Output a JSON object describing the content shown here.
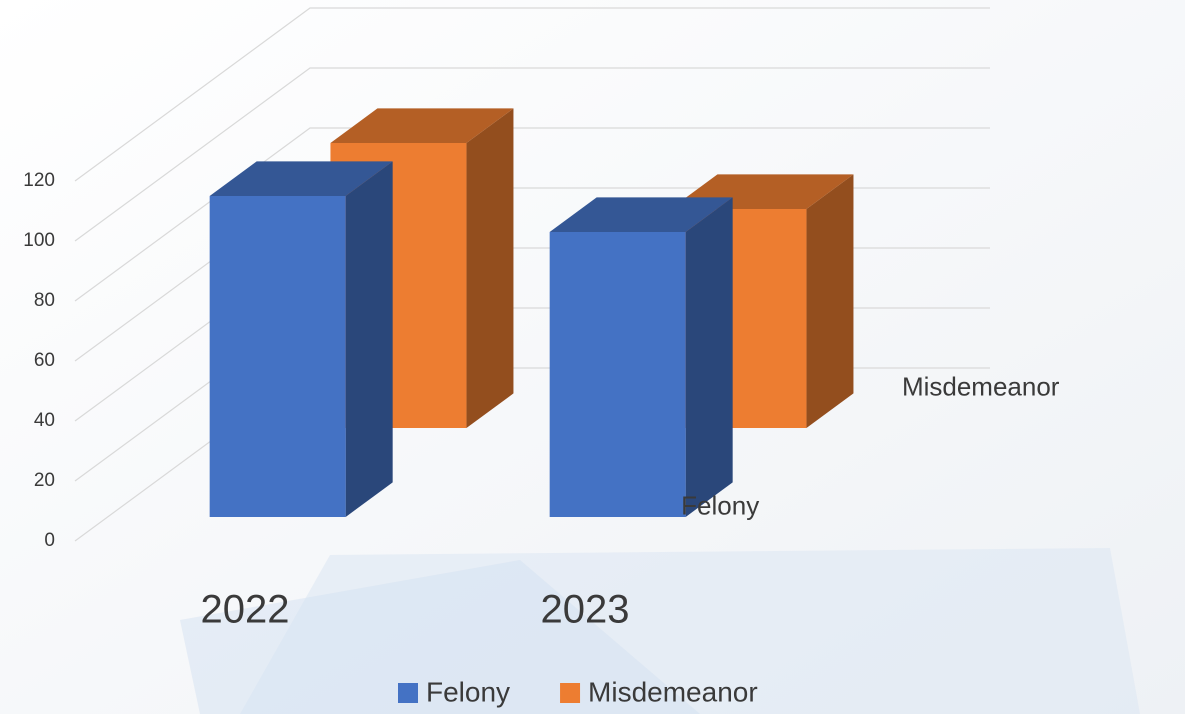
{
  "chart_data": {
    "type": "bar3d",
    "categories": [
      "2022",
      "2023"
    ],
    "series": [
      {
        "name": "Felony",
        "color": "#4472c4",
        "values": [
          107,
          95
        ]
      },
      {
        "name": "Misdemeanor",
        "color": "#ed7d31",
        "values": [
          95,
          73
        ]
      }
    ],
    "ylim": [
      0,
      120
    ],
    "yticks": [
      0,
      20,
      40,
      60,
      80,
      100,
      120
    ],
    "grid": true,
    "legend": "bottom"
  }
}
